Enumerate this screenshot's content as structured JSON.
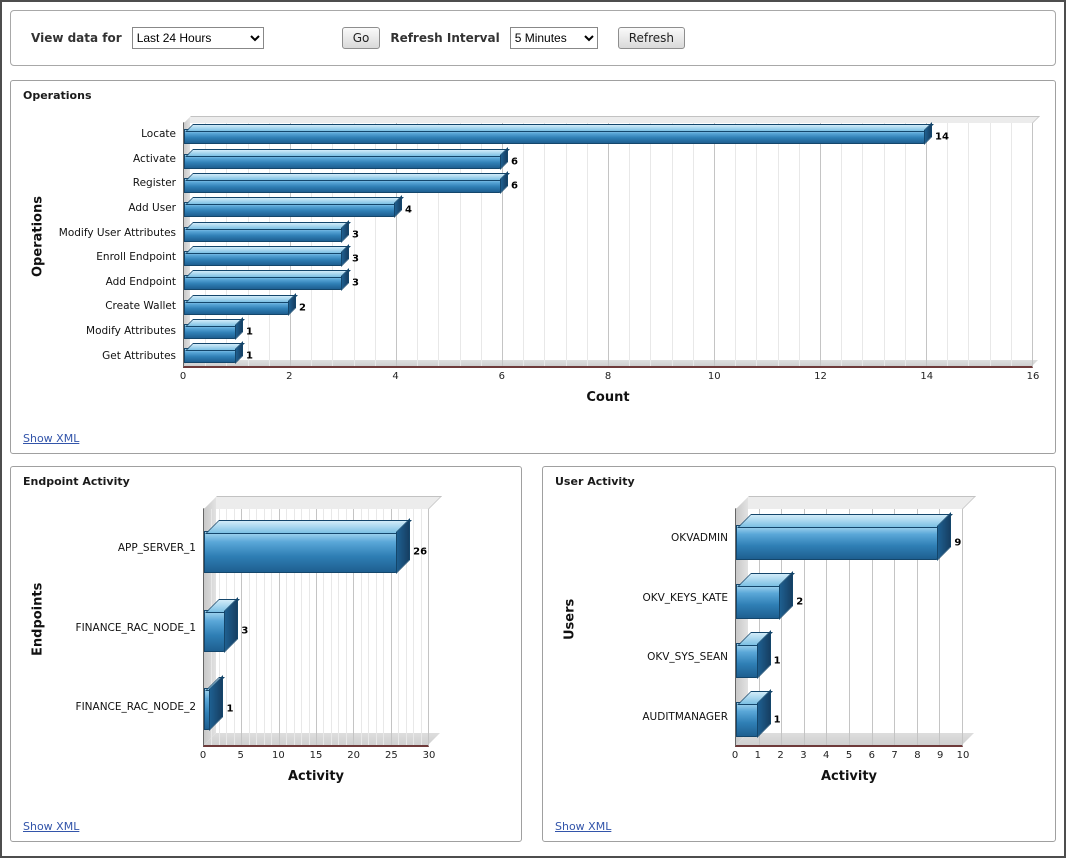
{
  "toolbar": {
    "view_data_for_label": "View data for",
    "view_data_for_value": "Last 24 Hours",
    "go_label": "Go",
    "refresh_interval_label": "Refresh Interval",
    "refresh_interval_value": "5 Minutes",
    "refresh_label": "Refresh"
  },
  "panels": [
    {
      "title": "Operations",
      "show_xml_label": "Show XML"
    },
    {
      "title": "Endpoint Activity",
      "show_xml_label": "Show XML"
    },
    {
      "title": "User Activity",
      "show_xml_label": "Show XML"
    }
  ],
  "chart_data": [
    {
      "type": "bar",
      "orientation": "horizontal",
      "title": "Operations",
      "categories": [
        "Locate",
        "Activate",
        "Register",
        "Add User",
        "Modify User Attributes",
        "Enroll Endpoint",
        "Add Endpoint",
        "Create Wallet",
        "Modify Attributes",
        "Get Attributes"
      ],
      "values": [
        14,
        6,
        6,
        4,
        3,
        3,
        3,
        2,
        1,
        1
      ],
      "xlabel": "Count",
      "ylabel": "Operations",
      "xlim": [
        0,
        16
      ],
      "xticks": [
        0,
        2,
        4,
        6,
        8,
        10,
        12,
        14,
        16
      ],
      "minor_divisions": 5,
      "grid": true,
      "legend": "none",
      "bar_color": "#2f7fb5"
    },
    {
      "type": "bar",
      "orientation": "horizontal",
      "title": "Endpoint Activity",
      "categories": [
        "APP_SERVER_1",
        "FINANCE_RAC_NODE_1",
        "FINANCE_RAC_NODE_2"
      ],
      "values": [
        26,
        3,
        1
      ],
      "xlabel": "Activity",
      "ylabel": "Endpoints",
      "xlim": [
        0,
        30
      ],
      "xticks": [
        0,
        5,
        10,
        15,
        20,
        25,
        30
      ],
      "minor_divisions": 5,
      "grid": true,
      "legend": "none",
      "bar_color": "#2f7fb5"
    },
    {
      "type": "bar",
      "orientation": "horizontal",
      "title": "User Activity",
      "categories": [
        "OKVADMIN",
        "OKV_KEYS_KATE",
        "OKV_SYS_SEAN",
        "AUDITMANAGER"
      ],
      "values": [
        9,
        2,
        1,
        1
      ],
      "xlabel": "Activity",
      "ylabel": "Users",
      "xlim": [
        0,
        10
      ],
      "xticks": [
        0,
        1,
        2,
        3,
        4,
        5,
        6,
        7,
        8,
        9,
        10
      ],
      "minor_divisions": 1,
      "grid": true,
      "legend": "none",
      "bar_color": "#2f7fb5"
    }
  ]
}
